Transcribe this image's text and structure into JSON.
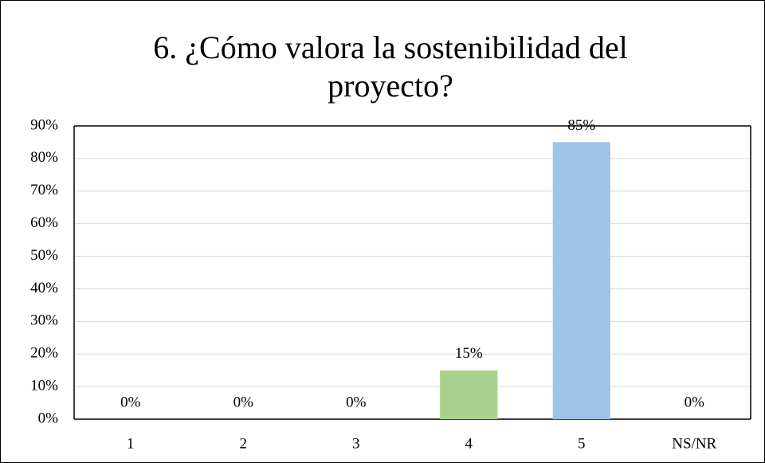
{
  "chart_data": {
    "type": "bar",
    "title": "6. ¿Cómo valora la sostenibilidad del proyecto?",
    "categories": [
      "1",
      "2",
      "3",
      "4",
      "5",
      "NS/NR"
    ],
    "values": [
      0,
      0,
      0,
      15,
      85,
      0
    ],
    "value_labels": [
      "0%",
      "0%",
      "0%",
      "15%",
      "85%",
      "0%"
    ],
    "colors": [
      null,
      null,
      null,
      "#a9d18e",
      "#9dc3e6",
      null
    ],
    "ylim": [
      0,
      90
    ],
    "yticks": [
      {
        "value": 0,
        "label": "0%"
      },
      {
        "value": 10,
        "label": "10%"
      },
      {
        "value": 20,
        "label": "20%"
      },
      {
        "value": 30,
        "label": "30%"
      },
      {
        "value": 40,
        "label": "40%"
      },
      {
        "value": 50,
        "label": "50%"
      },
      {
        "value": 60,
        "label": "60%"
      },
      {
        "value": 70,
        "label": "70%"
      },
      {
        "value": 80,
        "label": "80%"
      },
      {
        "value": 90,
        "label": "90%"
      }
    ],
    "grid": true
  }
}
